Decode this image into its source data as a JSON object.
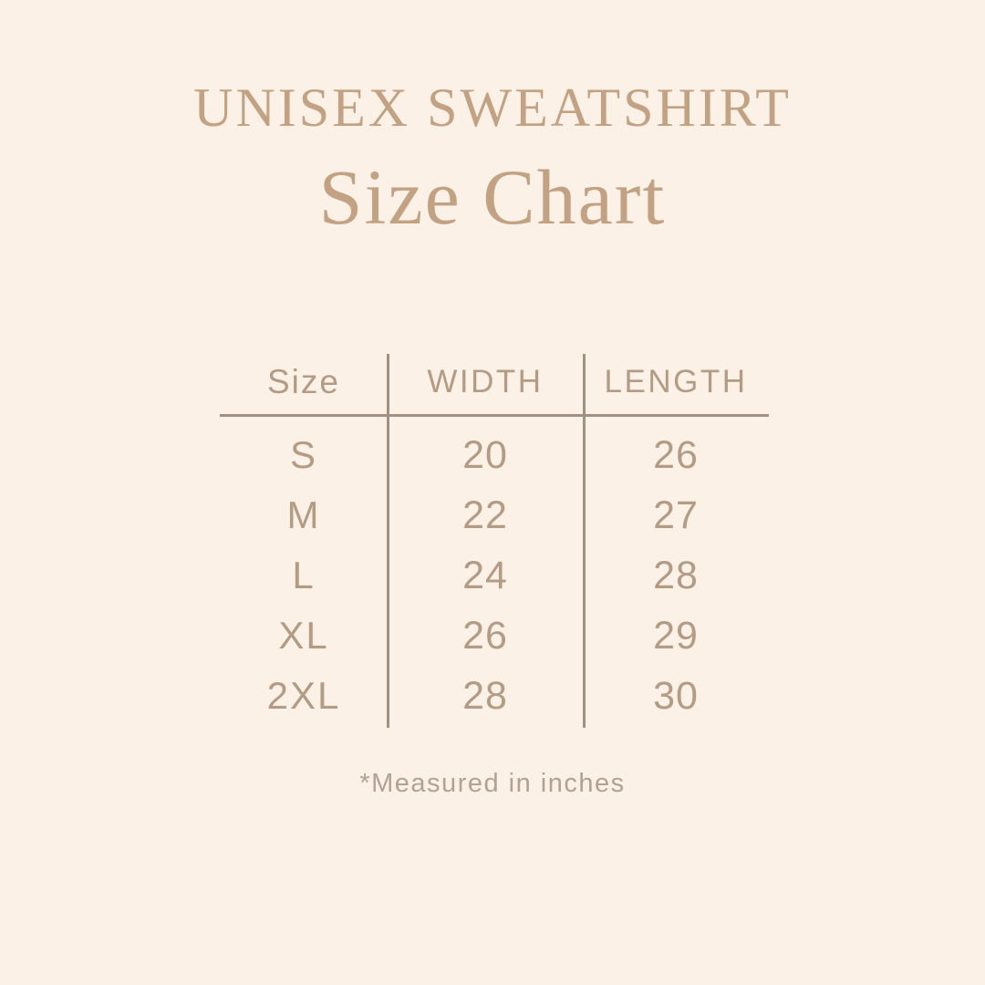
{
  "header": {
    "eyebrow": "UNISEX SWEATSHIRT",
    "title": "Size Chart"
  },
  "size_table": {
    "columns": [
      "Size",
      "WIDTH",
      "LENGTH"
    ],
    "rows": [
      {
        "size": "S",
        "width": "20",
        "length": "26"
      },
      {
        "size": "M",
        "width": "22",
        "length": "27"
      },
      {
        "size": "L",
        "width": "24",
        "length": "28"
      },
      {
        "size": "XL",
        "width": "26",
        "length": "29"
      },
      {
        "size": "2XL",
        "width": "28",
        "length": "30"
      }
    ],
    "units": "inches"
  },
  "footnote": {
    "text": "*Measured in inches"
  },
  "colors": {
    "background": "#fbf1e7",
    "title": "#c2a283",
    "table_text": "#b49b84",
    "line": "#a29080",
    "footnote": "#b3a191"
  }
}
